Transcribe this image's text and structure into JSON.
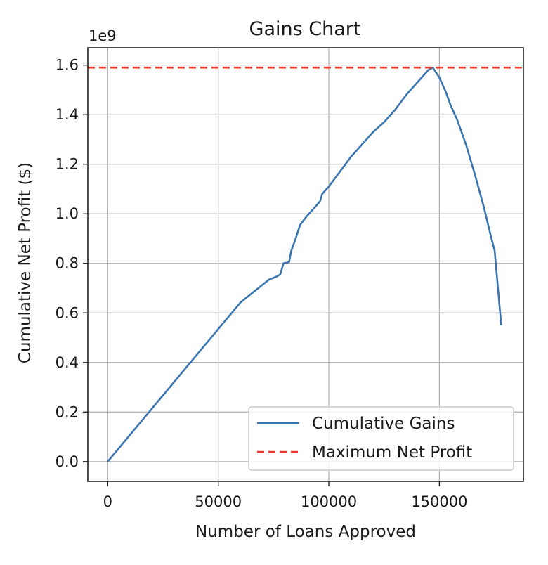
{
  "chart_data": {
    "type": "line",
    "title": "Gains Chart",
    "xlabel": "Number of Loans Approved",
    "ylabel": "Cumulative Net Profit ($)",
    "y_offset_label": "1e9",
    "xlim": [
      -9000,
      188000
    ],
    "ylim": [
      -0.08,
      1.67
    ],
    "x_ticks": [
      0,
      50000,
      100000,
      150000
    ],
    "x_tick_labels": [
      "0",
      "50000",
      "100000",
      "150000"
    ],
    "y_ticks": [
      0.0,
      0.2,
      0.4,
      0.6,
      0.8,
      1.0,
      1.2,
      1.4,
      1.6
    ],
    "y_tick_labels": [
      "0.0",
      "0.2",
      "0.4",
      "0.6",
      "0.8",
      "1.0",
      "1.2",
      "1.4",
      "1.6"
    ],
    "grid": true,
    "legend_position": "lower-right",
    "series": [
      {
        "name": "Cumulative Gains",
        "color": "#3a75b0",
        "style": "solid",
        "x": [
          0,
          20000,
          40000,
          60000,
          73000,
          76000,
          78000,
          79500,
          82000,
          83000,
          85000,
          87000,
          90000,
          93000,
          96000,
          97000,
          100000,
          105000,
          110000,
          115000,
          120000,
          125000,
          130000,
          135000,
          140000,
          145000,
          147000,
          150000,
          153000,
          155000,
          158000,
          162000,
          166000,
          170000,
          173000,
          175000,
          176000,
          178000
        ],
        "values": [
          0.0,
          0.214,
          0.428,
          0.642,
          0.735,
          0.745,
          0.755,
          0.8,
          0.805,
          0.85,
          0.9,
          0.955,
          0.99,
          1.02,
          1.05,
          1.08,
          1.11,
          1.17,
          1.23,
          1.28,
          1.33,
          1.37,
          1.42,
          1.48,
          1.53,
          1.58,
          1.59,
          1.55,
          1.49,
          1.44,
          1.38,
          1.28,
          1.16,
          1.03,
          0.92,
          0.85,
          0.75,
          0.55
        ]
      },
      {
        "name": "Maximum Net Profit",
        "color": "#e8392a",
        "style": "dashed",
        "constant_y": 1.59
      }
    ]
  }
}
